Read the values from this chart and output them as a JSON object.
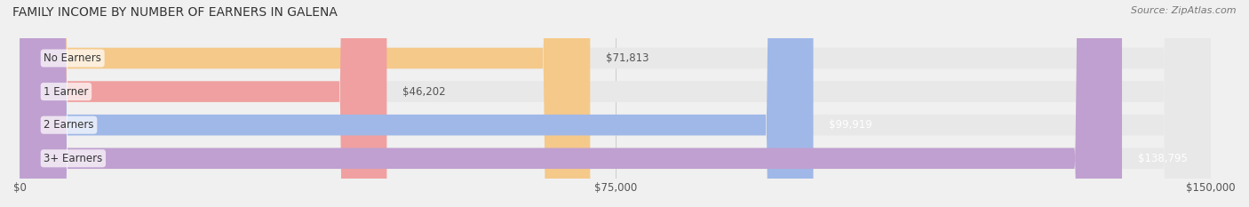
{
  "title": "FAMILY INCOME BY NUMBER OF EARNERS IN GALENA",
  "source": "Source: ZipAtlas.com",
  "categories": [
    "No Earners",
    "1 Earner",
    "2 Earners",
    "3+ Earners"
  ],
  "values": [
    71813,
    46202,
    99919,
    138795
  ],
  "bar_colors": [
    "#f5c98a",
    "#f0a0a0",
    "#a0b8e8",
    "#c0a0d0"
  ],
  "label_colors": [
    "#c07820",
    "#c05050",
    "#ffffff",
    "#ffffff"
  ],
  "background_color": "#f0f0f0",
  "bar_bg_color": "#e8e8e8",
  "xlim": [
    0,
    150000
  ],
  "xticks": [
    0,
    75000,
    150000
  ],
  "xtick_labels": [
    "$0",
    "$75,000",
    "$150,000"
  ],
  "bar_height": 0.62,
  "figsize": [
    14.06,
    2.33
  ],
  "dpi": 100
}
